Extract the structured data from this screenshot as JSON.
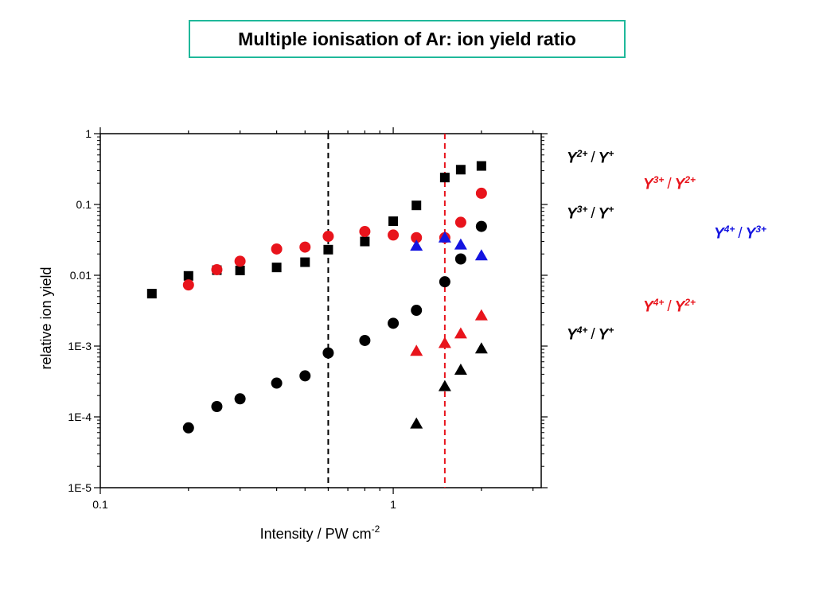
{
  "chart_data": {
    "type": "scatter",
    "title": "Multiple ionisation of Ar: ion yield ratio",
    "xlabel": "Intensity / PW cm",
    "xlabel_superscript": "-2",
    "ylabel": "relative ion yield",
    "x_scale": "log",
    "y_scale": "log",
    "xlim": [
      0.1,
      3.2
    ],
    "ylim": [
      1e-05,
      1
    ],
    "x_ticks": [
      {
        "value": 0.1,
        "label": "0.1"
      },
      {
        "value": 1,
        "label": "1"
      }
    ],
    "y_ticks": [
      {
        "value": 1,
        "label": "1"
      },
      {
        "value": 0.1,
        "label": "0.1"
      },
      {
        "value": 0.01,
        "label": "0.01"
      },
      {
        "value": 0.001,
        "label": "1E-3"
      },
      {
        "value": 0.0001,
        "label": "1E-4"
      },
      {
        "value": 1e-05,
        "label": "1E-5"
      }
    ],
    "grid": false,
    "vertical_lines": [
      {
        "x": 0.6,
        "color": "#000000",
        "style": "dashed"
      },
      {
        "x": 1.5,
        "color": "#e8141c",
        "style": "dashed"
      }
    ],
    "series": [
      {
        "name_main": "Y",
        "name_sup1": "2+",
        "name_sup2": "+",
        "marker": "square",
        "color": "#000000",
        "x": [
          0.15,
          0.2,
          0.25,
          0.3,
          0.4,
          0.5,
          0.6,
          0.8,
          1.0,
          1.2,
          1.5,
          1.7,
          2.0
        ],
        "y": [
          0.0055,
          0.0098,
          0.0118,
          0.0117,
          0.0129,
          0.0153,
          0.023,
          0.03,
          0.058,
          0.097,
          0.24,
          0.31,
          0.35
        ]
      },
      {
        "name_main": "Y",
        "name_sup1": "3+",
        "name_sup2": "2+",
        "marker": "circle",
        "color": "#e8141c",
        "x": [
          0.2,
          0.25,
          0.3,
          0.4,
          0.5,
          0.6,
          0.8,
          1.0,
          1.2,
          1.5,
          1.7,
          2.0
        ],
        "y": [
          0.0073,
          0.012,
          0.0158,
          0.0235,
          0.025,
          0.0355,
          0.0415,
          0.037,
          0.034,
          0.034,
          0.056,
          0.144
        ]
      },
      {
        "name_main": "Y",
        "name_sup1": "3+",
        "name_sup2": "+",
        "marker": "circle",
        "color": "#000000",
        "x": [
          0.2,
          0.25,
          0.3,
          0.4,
          0.5,
          0.6,
          0.8,
          1.0,
          1.2,
          1.5,
          1.7,
          2.0
        ],
        "y": [
          7e-05,
          0.00014,
          0.00018,
          0.0003,
          0.00038,
          0.0008,
          0.0012,
          0.0021,
          0.0032,
          0.0081,
          0.017,
          0.049
        ]
      },
      {
        "name_main": "Y",
        "name_sup1": "4+",
        "name_sup2": "3+",
        "marker": "triangle",
        "color": "#1414e0",
        "x": [
          1.2,
          1.5,
          1.7,
          2.0
        ],
        "y": [
          0.026,
          0.034,
          0.027,
          0.019
        ]
      },
      {
        "name_main": "Y",
        "name_sup1": "4+",
        "name_sup2": "2+",
        "marker": "triangle",
        "color": "#e8141c",
        "x": [
          1.2,
          1.5,
          1.7,
          2.0
        ],
        "y": [
          0.00085,
          0.0011,
          0.0015,
          0.0027
        ]
      },
      {
        "name_main": "Y",
        "name_sup1": "4+",
        "name_sup2": "+",
        "marker": "triangle",
        "color": "#000000",
        "x": [
          1.2,
          1.5,
          1.7,
          2.0
        ],
        "y": [
          8e-05,
          0.00027,
          0.00046,
          0.00092
        ]
      }
    ]
  }
}
